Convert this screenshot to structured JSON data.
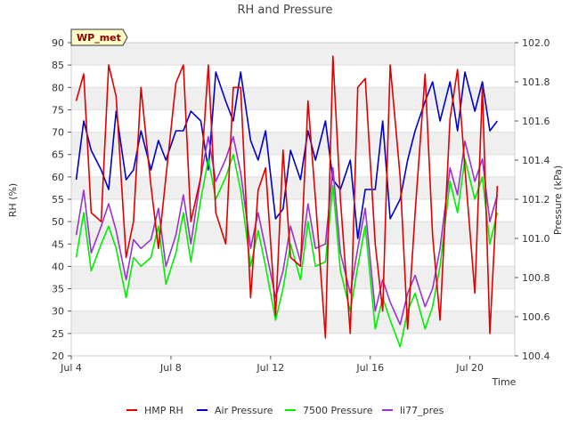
{
  "chart_data": {
    "type": "line",
    "title": "RH and Pressure",
    "badge": "WP_met",
    "xlabel": "Time",
    "ylabel_left": "RH (%)",
    "ylabel_right": "Pressure (kPa)",
    "xlim": [
      4.0,
      21.8
    ],
    "ylim_left": [
      20,
      90
    ],
    "ylim_right": [
      100.4,
      102.0
    ],
    "x_ticks": [
      {
        "value": 4,
        "label": "Jul 4"
      },
      {
        "value": 8,
        "label": "Jul 8"
      },
      {
        "value": 12,
        "label": "Jul 12"
      },
      {
        "value": 16,
        "label": "Jul 16"
      },
      {
        "value": 20,
        "label": "Jul 20"
      }
    ],
    "y_ticks_left": [
      20,
      25,
      30,
      35,
      40,
      45,
      50,
      55,
      60,
      65,
      70,
      75,
      80,
      85,
      90
    ],
    "y_ticks_right": [
      {
        "value": 100.4,
        "label": "100.4"
      },
      {
        "value": 100.6,
        "label": "100.6"
      },
      {
        "value": 100.8,
        "label": "100.8"
      },
      {
        "value": 101.0,
        "label": "101.0"
      },
      {
        "value": 101.2,
        "label": "101.2"
      },
      {
        "value": 101.4,
        "label": "101.4"
      },
      {
        "value": 101.6,
        "label": "101.6"
      },
      {
        "value": 101.8,
        "label": "101.8"
      },
      {
        "value": 102.0,
        "label": "102.0"
      }
    ],
    "grid": true,
    "legend_position": "bottom",
    "series": [
      {
        "name": "HMP RH",
        "color": "#e00000",
        "axis": "left",
        "x": [
          4.2,
          4.5,
          4.8,
          5.2,
          5.5,
          5.8,
          6.2,
          6.5,
          6.8,
          7.2,
          7.5,
          7.8,
          8.2,
          8.5,
          8.8,
          9.2,
          9.5,
          9.8,
          10.2,
          10.5,
          10.8,
          11.2,
          11.5,
          11.8,
          12.2,
          12.5,
          12.8,
          13.2,
          13.5,
          13.8,
          14.2,
          14.5,
          14.8,
          15.2,
          15.5,
          15.8,
          16.2,
          16.5,
          16.8,
          17.2,
          17.5,
          17.8,
          18.2,
          18.5,
          18.8,
          19.2,
          19.5,
          19.8,
          20.2,
          20.5,
          20.8,
          21.1
        ],
        "y": [
          77,
          83,
          52,
          50,
          85,
          78,
          42,
          50,
          80,
          58,
          44,
          60,
          81,
          85,
          50,
          60,
          85,
          52,
          45,
          80,
          80,
          33,
          57,
          62,
          29,
          66,
          42,
          40,
          77,
          55,
          24,
          87,
          55,
          25,
          80,
          82,
          45,
          30,
          85,
          60,
          26,
          52,
          83,
          47,
          28,
          73,
          84,
          62,
          34,
          80,
          25,
          58
        ]
      },
      {
        "name": "Air Pressure",
        "color": "#0000cc",
        "axis": "right",
        "x": [
          4.2,
          4.5,
          4.8,
          5.2,
          5.5,
          5.8,
          6.2,
          6.5,
          6.8,
          7.2,
          7.5,
          7.8,
          8.2,
          8.5,
          8.8,
          9.2,
          9.5,
          9.8,
          10.2,
          10.5,
          10.8,
          11.2,
          11.5,
          11.8,
          12.2,
          12.5,
          12.8,
          13.2,
          13.5,
          13.8,
          14.2,
          14.5,
          14.8,
          15.2,
          15.5,
          15.8,
          16.2,
          16.5,
          16.8,
          17.2,
          17.5,
          17.8,
          18.2,
          18.5,
          18.8,
          19.2,
          19.5,
          19.8,
          20.2,
          20.5,
          20.8,
          21.1
        ],
        "y": [
          101.3,
          101.6,
          101.45,
          101.35,
          101.25,
          101.65,
          101.3,
          101.35,
          101.55,
          101.35,
          101.5,
          101.4,
          101.55,
          101.55,
          101.65,
          101.6,
          101.35,
          101.85,
          101.7,
          101.6,
          101.85,
          101.5,
          101.4,
          101.55,
          101.1,
          101.15,
          101.45,
          101.3,
          101.55,
          101.4,
          101.6,
          101.3,
          101.25,
          101.4,
          101.0,
          101.25,
          101.25,
          101.6,
          101.1,
          101.2,
          101.4,
          101.55,
          101.7,
          101.8,
          101.6,
          101.8,
          101.55,
          101.85,
          101.65,
          101.8,
          101.55,
          101.6
        ]
      },
      {
        "name": "7500 Pressure",
        "color": "#00ee00",
        "axis": "left",
        "x": [
          4.2,
          4.5,
          4.8,
          5.2,
          5.5,
          5.8,
          6.2,
          6.5,
          6.8,
          7.2,
          7.5,
          7.8,
          8.2,
          8.5,
          8.8,
          9.2,
          9.5,
          9.8,
          10.2,
          10.5,
          10.8,
          11.2,
          11.5,
          11.8,
          12.2,
          12.5,
          12.8,
          13.2,
          13.5,
          13.8,
          14.2,
          14.5,
          14.8,
          15.2,
          15.5,
          15.8,
          16.2,
          16.5,
          16.8,
          17.2,
          17.5,
          17.8,
          18.2,
          18.5,
          18.8,
          19.2,
          19.5,
          19.8,
          20.2,
          20.5,
          20.8,
          21.1
        ],
        "y": [
          42,
          52,
          39,
          45,
          49,
          44,
          33,
          42,
          40,
          42,
          49,
          36,
          43,
          52,
          41,
          55,
          64,
          55,
          60,
          65,
          57,
          40,
          48,
          40,
          28,
          35,
          45,
          37,
          50,
          40,
          41,
          58,
          39,
          30,
          40,
          49,
          26,
          33,
          28,
          22,
          30,
          34,
          26,
          31,
          40,
          59,
          52,
          64,
          55,
          60,
          45,
          52
        ]
      },
      {
        "name": "li77_pres",
        "color": "#9933cc",
        "axis": "left",
        "x": [
          4.2,
          4.5,
          4.8,
          5.2,
          5.5,
          5.8,
          6.2,
          6.5,
          6.8,
          7.2,
          7.5,
          7.8,
          8.2,
          8.5,
          8.8,
          9.2,
          9.5,
          9.8,
          10.2,
          10.5,
          10.8,
          11.2,
          11.5,
          11.8,
          12.2,
          12.5,
          12.8,
          13.2,
          13.5,
          13.8,
          14.2,
          14.5,
          14.8,
          15.2,
          15.5,
          15.8,
          16.2,
          16.5,
          16.8,
          17.2,
          17.5,
          17.8,
          18.2,
          18.5,
          18.8,
          19.2,
          19.5,
          19.8,
          20.2,
          20.5,
          20.8,
          21.1
        ],
        "y": [
          47,
          57,
          43,
          49,
          54,
          48,
          37,
          46,
          44,
          46,
          53,
          40,
          47,
          56,
          45,
          60,
          69,
          59,
          64,
          69,
          61,
          44,
          52,
          44,
          33,
          39,
          49,
          41,
          54,
          44,
          45,
          62,
          43,
          34,
          44,
          53,
          30,
          37,
          32,
          27,
          34,
          38,
          31,
          35,
          44,
          62,
          56,
          68,
          59,
          64,
          50,
          56
        ]
      }
    ]
  }
}
